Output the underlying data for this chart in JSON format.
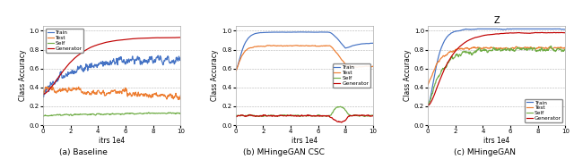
{
  "title_a": "(a) Baseline",
  "title_b": "(b) MHingeGAN CSC",
  "title_c": "(c) MHingeGAN",
  "title_z": "Z",
  "xlabel": "itrs 1e4",
  "ylabel": "Class Accuracy",
  "colors": {
    "Train": "#4472c4",
    "Test": "#ed7d31",
    "Self": "#70ad47",
    "Generator": "#c00000"
  },
  "legend_labels": [
    "Train",
    "Test",
    "Self",
    "Generator"
  ],
  "ylim": [
    0.0,
    1.05
  ],
  "yticks": [
    0.0,
    0.2,
    0.4,
    0.6,
    0.8,
    1.0
  ],
  "xlim_a": [
    0,
    10
  ],
  "xlim_b": [
    0,
    10
  ],
  "xlim_c": [
    0,
    10
  ],
  "xticks_a": [
    0,
    2,
    4,
    6,
    8,
    10
  ],
  "xticks_b": [
    0,
    2,
    4,
    6,
    8,
    10
  ],
  "xticks_c": [
    0,
    2,
    4,
    6,
    8,
    10
  ]
}
